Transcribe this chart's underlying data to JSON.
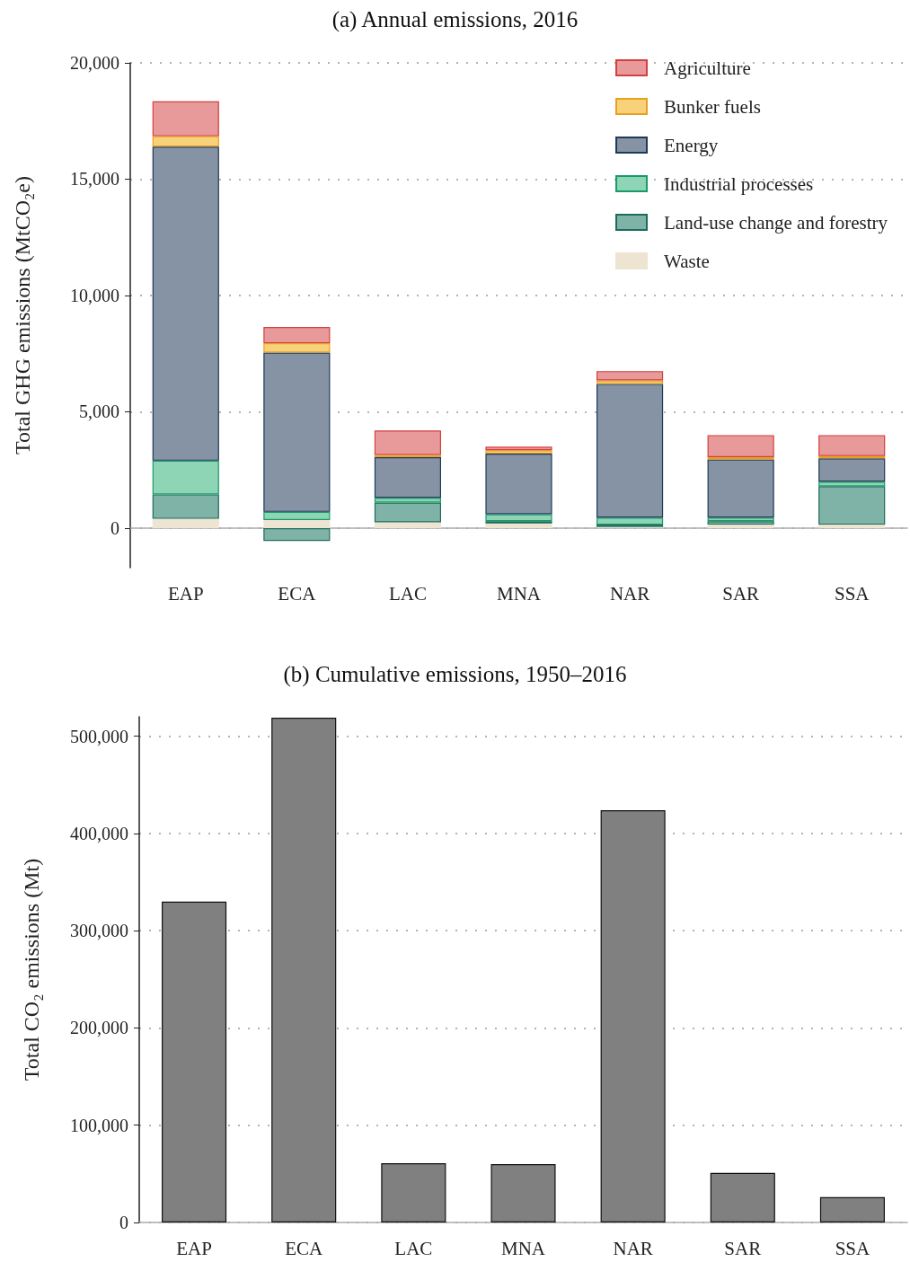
{
  "chart_data": [
    {
      "type": "bar",
      "title": "(a) Annual emissions, 2016",
      "ylabel": "Total GHG emissions (MtCO₂e)",
      "categories": [
        "EAP",
        "ECA",
        "LAC",
        "MNA",
        "NAR",
        "SAR",
        "SSA"
      ],
      "stacked": true,
      "series": [
        {
          "name": "Waste",
          "color": "#ede4d2",
          "values": [
            400,
            350,
            250,
            200,
            50,
            150,
            150
          ]
        },
        {
          "name": "Land-use change and forestry",
          "color": "#80b3a8",
          "values": [
            1050,
            -550,
            850,
            100,
            100,
            150,
            1650
          ]
        },
        {
          "name": "Industrial processes",
          "color": "#8dd5b5",
          "values": [
            1450,
            350,
            200,
            300,
            300,
            150,
            200
          ]
        },
        {
          "name": "Energy",
          "color": "#8593a5",
          "values": [
            13500,
            6850,
            1750,
            2600,
            5750,
            2500,
            1000
          ]
        },
        {
          "name": "Bunker fuels",
          "color": "#f7d27a",
          "values": [
            450,
            400,
            100,
            150,
            150,
            100,
            100
          ]
        },
        {
          "name": "Agriculture",
          "color": "#e89a9a",
          "values": [
            1500,
            700,
            1050,
            150,
            400,
            950,
            900
          ]
        }
      ],
      "ylim": [
        -1700,
        20000
      ],
      "yticks": [
        {
          "value": 0,
          "label": "0"
        },
        {
          "value": 5000,
          "label": "5,000"
        },
        {
          "value": 10000,
          "label": "10,000"
        },
        {
          "value": 15000,
          "label": "15,000"
        },
        {
          "value": 20000,
          "label": "20,000"
        }
      ],
      "grid": "y",
      "legend": "top right"
    },
    {
      "type": "bar",
      "title": "(b) Cumulative emissions, 1950–2016",
      "ylabel": "Total CO₂ emissions (Mt)",
      "categories": [
        "EAP",
        "ECA",
        "LAC",
        "MNA",
        "NAR",
        "SAR",
        "SSA"
      ],
      "series": [
        {
          "color": "#808080",
          "values": [
            330000,
            519000,
            61000,
            60000,
            424000,
            51000,
            26000
          ]
        }
      ],
      "ylim": [
        0,
        520000
      ],
      "yticks": [
        {
          "value": 0,
          "label": "0"
        },
        {
          "value": 100000,
          "label": "100,000"
        },
        {
          "value": 200000,
          "label": "200,000"
        },
        {
          "value": 300000,
          "label": "300,000"
        },
        {
          "value": 400000,
          "label": "400,000"
        },
        {
          "value": 500000,
          "label": "500,000"
        }
      ],
      "grid": "y"
    }
  ]
}
